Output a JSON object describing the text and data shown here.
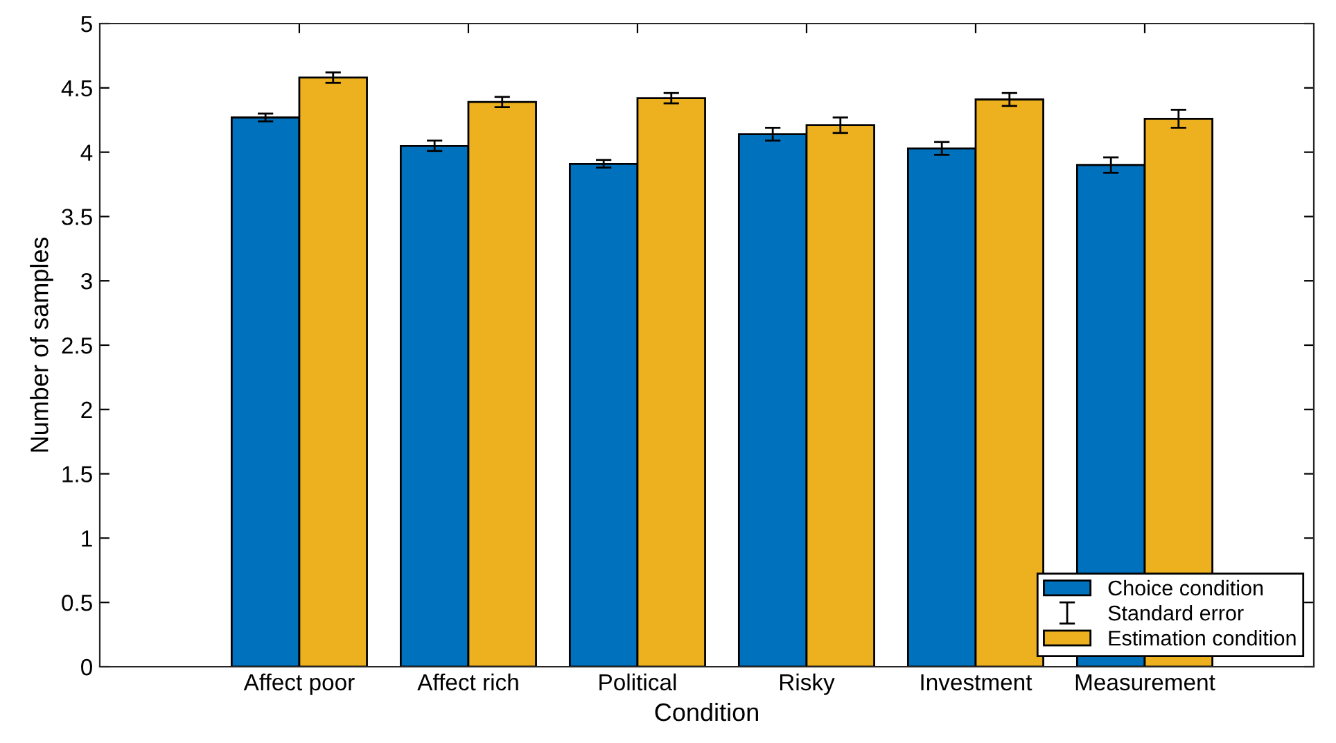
{
  "chart_data": {
    "type": "bar",
    "xlabel": "Condition",
    "ylabel": "Number of samples",
    "categories": [
      "Affect poor",
      "Affect rich",
      "Political",
      "Risky",
      "Investment",
      "Measurement"
    ],
    "series": [
      {
        "name": "Choice condition",
        "color": "#0072bd",
        "values": [
          4.27,
          4.05,
          3.91,
          4.14,
          4.03,
          3.9
        ],
        "errors": [
          0.03,
          0.04,
          0.03,
          0.05,
          0.05,
          0.06
        ]
      },
      {
        "name": "Estimation condition",
        "color": "#edb120",
        "values": [
          4.58,
          4.39,
          4.42,
          4.21,
          4.41,
          4.26
        ],
        "errors": [
          0.04,
          0.04,
          0.04,
          0.06,
          0.05,
          0.07
        ]
      }
    ],
    "annotations": [
      "Standard error"
    ],
    "ylim": [
      0,
      5
    ],
    "yticks": [
      0,
      0.5,
      1,
      1.5,
      2,
      2.5,
      3,
      3.5,
      4,
      4.5,
      5
    ],
    "grid": false,
    "legend": "bottom right"
  }
}
